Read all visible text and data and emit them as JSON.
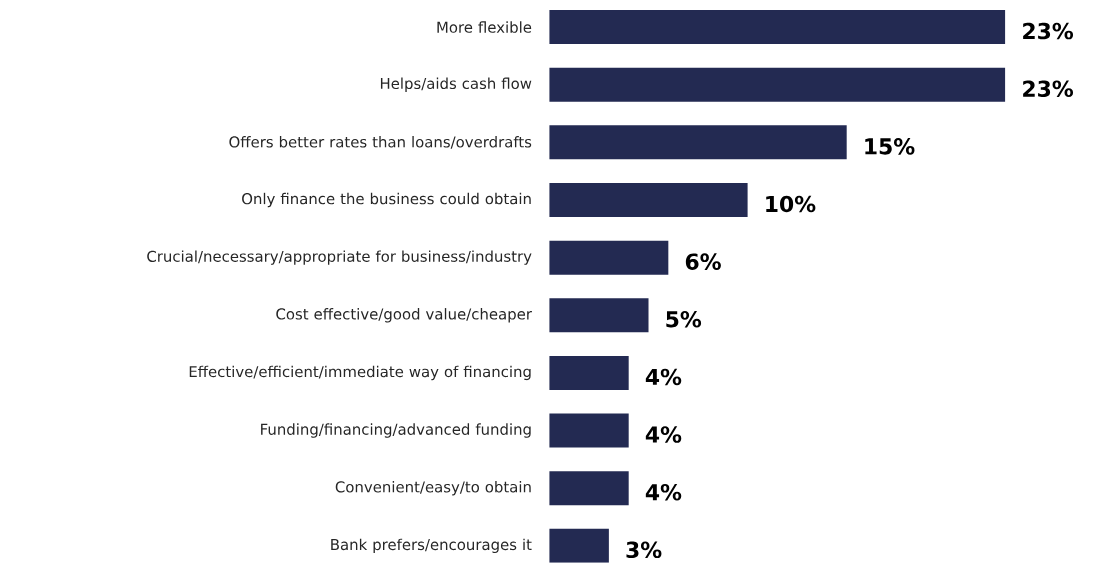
{
  "chart_data": {
    "type": "bar",
    "orientation": "horizontal",
    "categories": [
      "More flexible",
      "Helps/aids cash flow",
      "Offers better rates than loans/overdrafts",
      "Only finance the business could obtain",
      "Crucial/necessary/appropriate for business/industry",
      "Cost effective/good value/cheaper",
      "Effective/efficient/immediate way of financing",
      "Funding/financing/advanced funding",
      "Convenient/easy/to obtain",
      "Bank prefers/encourages it"
    ],
    "values": [
      23,
      23,
      15,
      10,
      6,
      5,
      4,
      4,
      4,
      3
    ],
    "value_labels": [
      "23%",
      "23%",
      "15%",
      "10%",
      "6%",
      "5%",
      "4%",
      "4%",
      "4%",
      "3%"
    ],
    "color": "#232a52"
  }
}
